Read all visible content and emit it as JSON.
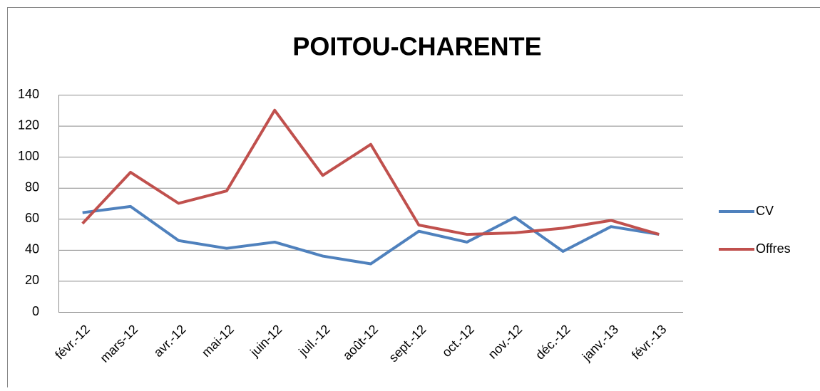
{
  "chart_data": {
    "type": "line",
    "title": "POITOU-CHARENTE",
    "categories": [
      "févr.-12",
      "mars-12",
      "avr.-12",
      "mai-12",
      "juin-12",
      "juil.-12",
      "août-12",
      "sept.-12",
      "oct.-12",
      "nov.-12",
      "déc.-12",
      "janv.-13",
      "févr.-13"
    ],
    "series": [
      {
        "name": "CV",
        "color": "#4f81bd",
        "values": [
          64,
          68,
          46,
          41,
          45,
          36,
          31,
          52,
          45,
          61,
          39,
          55,
          50
        ]
      },
      {
        "name": "Offres",
        "color": "#c0504d",
        "values": [
          57,
          90,
          70,
          78,
          130,
          88,
          108,
          56,
          50,
          51,
          54,
          59,
          50
        ]
      }
    ],
    "ylim": [
      0,
      140
    ],
    "yticks": [
      0,
      20,
      40,
      60,
      80,
      100,
      120,
      140
    ],
    "grid": true,
    "legend": "right"
  }
}
